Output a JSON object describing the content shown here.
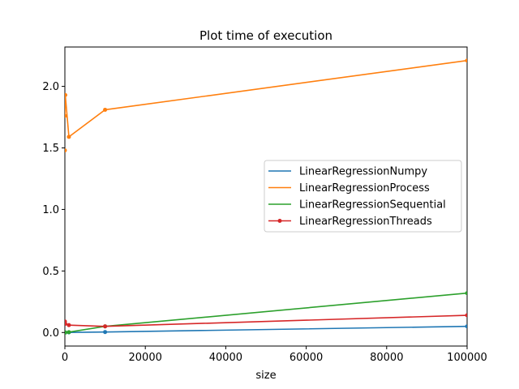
{
  "chart_data": {
    "type": "line",
    "title": "Plot time of execution",
    "xlabel": "size",
    "ylabel": "",
    "xlim": [
      0,
      100000
    ],
    "ylim": [
      -0.11,
      2.32
    ],
    "x_ticks": [
      0,
      20000,
      40000,
      60000,
      80000,
      100000
    ],
    "x_tick_labels": [
      "0",
      "20000",
      "40000",
      "60000",
      "80000",
      "100000"
    ],
    "y_ticks": [
      0.0,
      0.5,
      1.0,
      1.5,
      2.0
    ],
    "y_tick_labels": [
      "0.0",
      "0.5",
      "1.0",
      "1.5",
      "2.0"
    ],
    "grid": false,
    "legend_position": "center-right",
    "series": [
      {
        "name": "LinearRegressionNumpy",
        "color": "#1f77b4",
        "markers": true,
        "x": [
          10,
          100,
          1000,
          10000,
          100000
        ],
        "y": [
          0.0,
          0.0,
          0.001,
          0.004,
          0.05
        ]
      },
      {
        "name": "LinearRegressionProcess",
        "color": "#ff7f0e",
        "markers": true,
        "x": [
          10,
          100,
          1000,
          10000,
          100000
        ],
        "y": [
          1.76,
          1.93,
          1.59,
          1.81,
          2.21
        ],
        "extra_points": [
          {
            "x": 0,
            "y": 1.48
          }
        ]
      },
      {
        "name": "LinearRegressionSequential",
        "color": "#2ca02c",
        "markers": true,
        "x": [
          10,
          100,
          1000,
          10000,
          100000
        ],
        "y": [
          0.0,
          0.0,
          0.003,
          0.05,
          0.32
        ]
      },
      {
        "name": "LinearRegressionThreads",
        "color": "#d62728",
        "markers": true,
        "x": [
          10,
          100,
          1000,
          10000,
          100000
        ],
        "y": [
          0.09,
          0.07,
          0.06,
          0.05,
          0.14
        ]
      }
    ]
  }
}
